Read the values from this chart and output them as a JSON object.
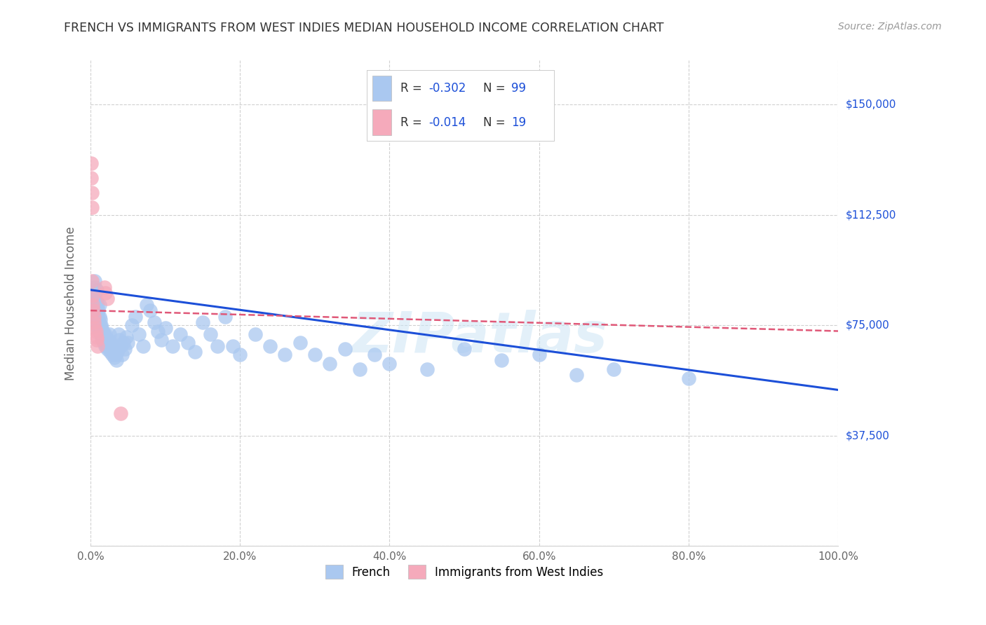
{
  "title": "FRENCH VS IMMIGRANTS FROM WEST INDIES MEDIAN HOUSEHOLD INCOME CORRELATION CHART",
  "source": "Source: ZipAtlas.com",
  "ylabel": "Median Household Income",
  "watermark": "ZIPatlas",
  "legend_french_label": "French",
  "legend_west_label": "Immigrants from West Indies",
  "french_color": "#aac8f0",
  "west_color": "#f5aabb",
  "french_line_color": "#1c4fd8",
  "west_line_color": "#e05878",
  "background_color": "#ffffff",
  "grid_color": "#d0d0d0",
  "yticks": [
    0,
    37500,
    75000,
    112500,
    150000
  ],
  "ytick_labels": [
    "",
    "$37,500",
    "$75,000",
    "$112,500",
    "$150,000"
  ],
  "xticks": [
    0.0,
    0.2,
    0.4,
    0.6,
    0.8,
    1.0
  ],
  "xtick_labels": [
    "0.0%",
    "20.0%",
    "40.0%",
    "60.0%",
    "80.0%",
    "100.0%"
  ],
  "xlim": [
    0.0,
    1.0
  ],
  "ylim": [
    0,
    165000
  ],
  "french_scatter_x": [
    0.002,
    0.003,
    0.004,
    0.004,
    0.005,
    0.005,
    0.006,
    0.006,
    0.006,
    0.007,
    0.007,
    0.008,
    0.008,
    0.008,
    0.009,
    0.009,
    0.009,
    0.01,
    0.01,
    0.01,
    0.011,
    0.011,
    0.012,
    0.012,
    0.013,
    0.013,
    0.014,
    0.014,
    0.015,
    0.015,
    0.016,
    0.016,
    0.017,
    0.018,
    0.018,
    0.019,
    0.02,
    0.02,
    0.021,
    0.022,
    0.023,
    0.024,
    0.025,
    0.026,
    0.027,
    0.028,
    0.029,
    0.03,
    0.031,
    0.032,
    0.033,
    0.034,
    0.035,
    0.036,
    0.037,
    0.038,
    0.04,
    0.042,
    0.044,
    0.046,
    0.048,
    0.05,
    0.055,
    0.06,
    0.065,
    0.07,
    0.075,
    0.08,
    0.085,
    0.09,
    0.095,
    0.1,
    0.11,
    0.12,
    0.13,
    0.14,
    0.15,
    0.16,
    0.17,
    0.18,
    0.19,
    0.2,
    0.22,
    0.24,
    0.26,
    0.28,
    0.3,
    0.32,
    0.34,
    0.36,
    0.38,
    0.4,
    0.45,
    0.5,
    0.55,
    0.6,
    0.65,
    0.7,
    0.8
  ],
  "french_scatter_y": [
    82000,
    86000,
    79000,
    83000,
    80000,
    84000,
    88000,
    85000,
    90000,
    78000,
    81000,
    76000,
    83000,
    87000,
    75000,
    79000,
    82000,
    74000,
    77000,
    80000,
    73000,
    76000,
    78000,
    82000,
    74000,
    77000,
    72000,
    75000,
    71000,
    74000,
    70000,
    73000,
    71000,
    69000,
    72000,
    70000,
    68000,
    72000,
    69000,
    67000,
    70000,
    68000,
    72000,
    66000,
    69000,
    67000,
    65000,
    68000,
    66000,
    64000,
    67000,
    65000,
    63000,
    66000,
    72000,
    70000,
    68000,
    65000,
    69000,
    67000,
    71000,
    69000,
    75000,
    78000,
    72000,
    68000,
    82000,
    80000,
    76000,
    73000,
    70000,
    74000,
    68000,
    72000,
    69000,
    66000,
    76000,
    72000,
    68000,
    78000,
    68000,
    65000,
    72000,
    68000,
    65000,
    69000,
    65000,
    62000,
    67000,
    60000,
    65000,
    62000,
    60000,
    67000,
    63000,
    65000,
    58000,
    60000,
    57000
  ],
  "west_scatter_x": [
    0.001,
    0.001,
    0.002,
    0.002,
    0.002,
    0.003,
    0.003,
    0.004,
    0.005,
    0.005,
    0.006,
    0.007,
    0.008,
    0.008,
    0.009,
    0.019,
    0.02,
    0.022,
    0.04
  ],
  "west_scatter_y": [
    130000,
    125000,
    115000,
    120000,
    90000,
    85000,
    82000,
    80000,
    78000,
    76000,
    74000,
    73000,
    71000,
    70000,
    68000,
    88000,
    86000,
    84000,
    45000
  ],
  "french_line_x": [
    0.0,
    1.0
  ],
  "french_line_y": [
    87000,
    53000
  ],
  "west_line_x": [
    0.0,
    1.0
  ],
  "west_line_y": [
    80000,
    73000
  ]
}
